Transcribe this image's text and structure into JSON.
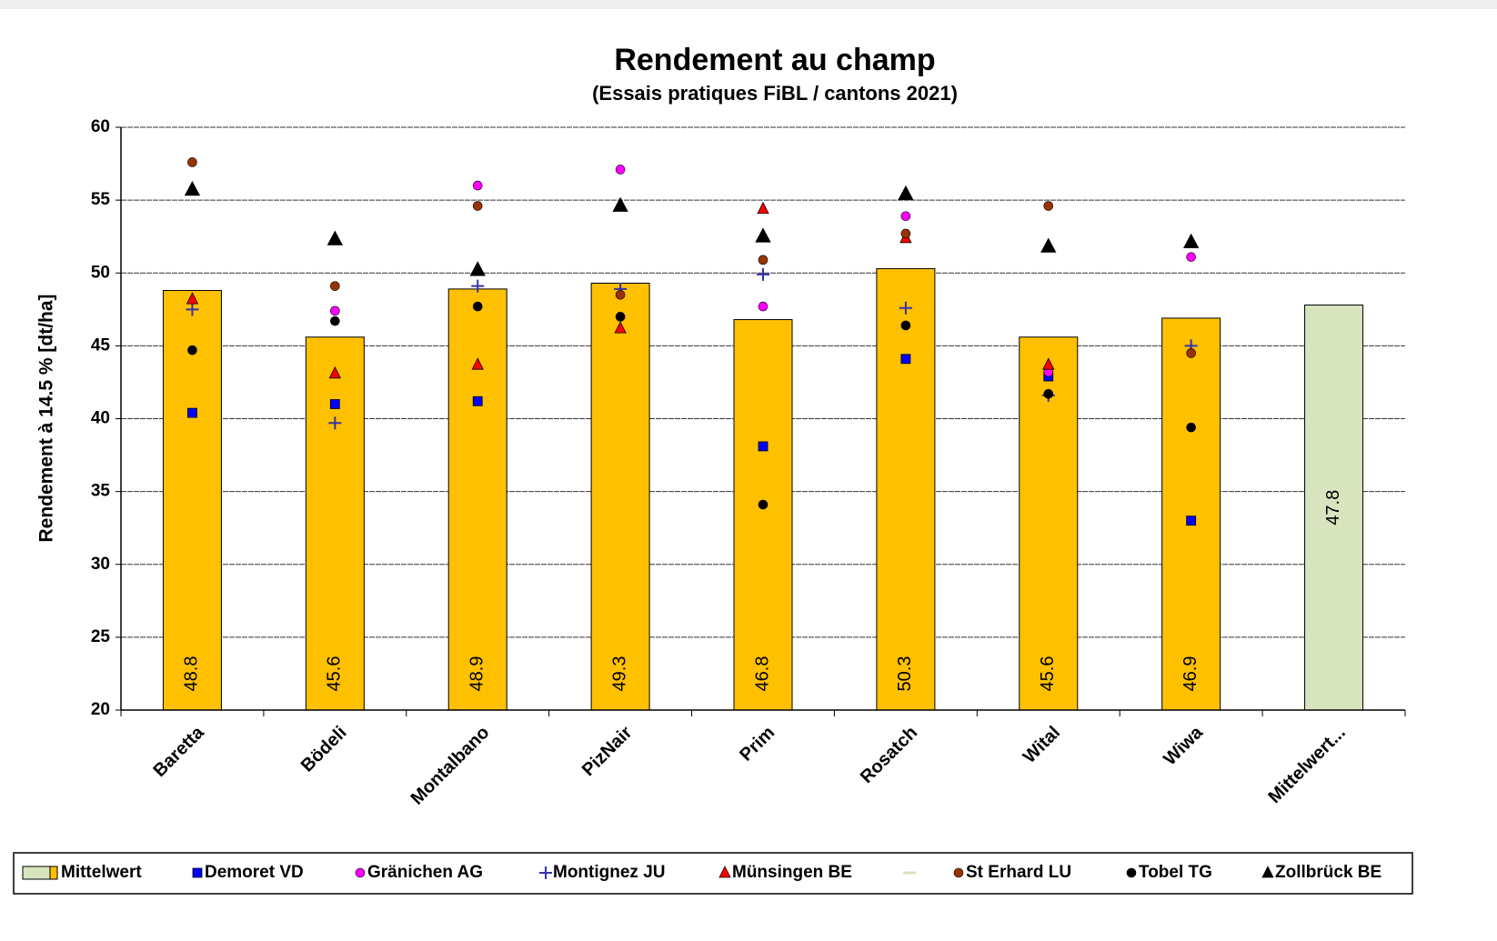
{
  "chart_data": {
    "type": "bar",
    "title": "Rendement au champ",
    "subtitle": "(Essais pratiques FiBL / cantons 2021)",
    "y_label": "Rendement à 14.5 %  [dt/ha]",
    "categories": [
      "Baretta",
      "Bödeli",
      "Montalbano",
      "PizNair",
      "Prim",
      "Rosatch",
      "Wital",
      "Wiwa",
      "Mittelwert..."
    ],
    "ylim": [
      20,
      60
    ],
    "yticks": [
      20,
      25,
      30,
      35,
      40,
      45,
      50,
      55,
      60
    ],
    "grid": true,
    "legend": "bottom",
    "series": [
      {
        "name": "Mittelwert",
        "type": "bar",
        "colors": [
          "#ffc000",
          "#ffc000",
          "#ffc000",
          "#ffc000",
          "#ffc000",
          "#ffc000",
          "#ffc000",
          "#ffc000",
          "#d7e4bd"
        ],
        "values": [
          48.8,
          45.6,
          48.9,
          49.3,
          46.8,
          50.3,
          45.6,
          46.9,
          47.8
        ]
      },
      {
        "name": "Demoret VD",
        "type": "scatter",
        "marker": "square",
        "color": "#0000ff",
        "values": [
          40.4,
          41.0,
          41.2,
          null,
          38.1,
          44.1,
          42.9,
          33.0,
          null
        ]
      },
      {
        "name": "Gränichen AG",
        "type": "scatter",
        "marker": "circle",
        "color": "#ff00ff",
        "values": [
          null,
          47.4,
          56.0,
          57.1,
          47.7,
          53.9,
          43.2,
          51.1,
          null
        ]
      },
      {
        "name": "Montignez JU",
        "type": "scatter",
        "marker": "plus",
        "color": "#3333aa",
        "values": [
          47.5,
          39.7,
          49.1,
          48.9,
          49.9,
          47.6,
          41.6,
          45.0,
          null
        ]
      },
      {
        "name": "Münsingen BE",
        "type": "scatter",
        "marker": "triangle",
        "color": "#ff0000",
        "values": [
          48.2,
          43.1,
          43.7,
          46.2,
          54.4,
          52.4,
          43.7,
          null,
          null
        ]
      },
      {
        "name": "St Erhard LU",
        "type": "scatter",
        "marker": "circle",
        "color": "#993300",
        "values": [
          57.6,
          49.1,
          54.6,
          48.5,
          50.9,
          52.7,
          54.6,
          44.5,
          null
        ]
      },
      {
        "name": "Tobel TG",
        "type": "scatter",
        "marker": "circle",
        "color": "#000000",
        "values": [
          44.7,
          46.7,
          47.7,
          47.0,
          34.1,
          46.4,
          41.7,
          39.4,
          null
        ]
      },
      {
        "name": "Zollbrück BE",
        "type": "scatter",
        "marker": "triangle-large",
        "color": "#000000",
        "values": [
          55.7,
          52.3,
          50.2,
          54.6,
          52.5,
          55.4,
          51.8,
          52.1,
          null
        ]
      }
    ]
  }
}
